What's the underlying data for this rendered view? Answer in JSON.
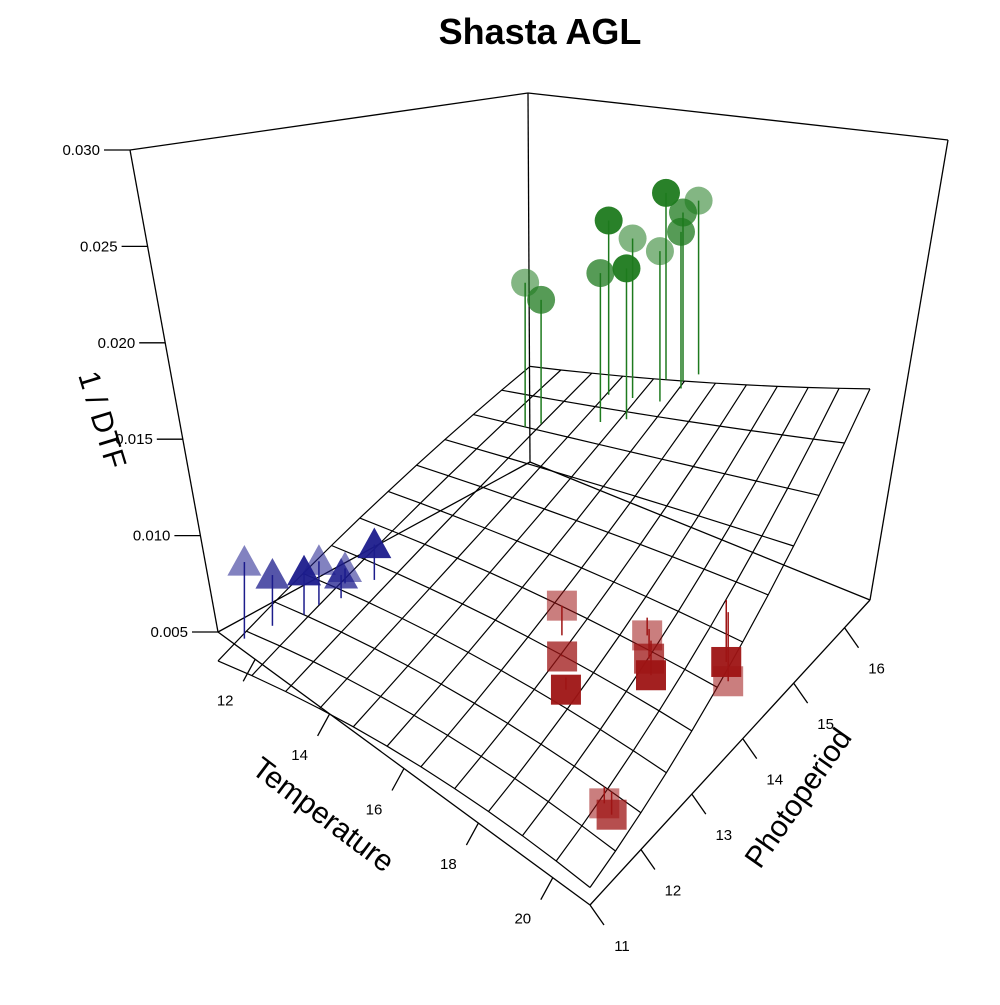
{
  "chart_data": {
    "type": "scatter",
    "subtype": "3d-scatter-with-regression-plane",
    "title": "Shasta AGL",
    "xlabel": "Temperature",
    "ylabel": "Photoperiod",
    "zlabel": "1 / DTF",
    "x_ticks": [
      "12",
      "14",
      "16",
      "18",
      "20"
    ],
    "y_ticks": [
      "11",
      "12",
      "13",
      "14",
      "15",
      "16"
    ],
    "z_ticks": [
      "0.005",
      "0.010",
      "0.015",
      "0.020",
      "0.025",
      "0.030"
    ],
    "xlim": [
      11,
      21
    ],
    "ylim": [
      11,
      16.5
    ],
    "zlim": [
      0.005,
      0.03
    ],
    "grid": true,
    "plane": {
      "intercept_at_x11_y11": 0.0035,
      "slope_x": 0.0005,
      "slope_y": 0.00145
    },
    "series": [
      {
        "marker": "triangle",
        "color": "#1c1c8c",
        "points": [
          {
            "x": 11.1,
            "y": 11.4,
            "z": 0.0082
          },
          {
            "x": 11.4,
            "y": 11.7,
            "z": 0.0075
          },
          {
            "x": 11.8,
            "y": 12.0,
            "z": 0.0078
          },
          {
            "x": 11.9,
            "y": 12.2,
            "z": 0.0082
          },
          {
            "x": 12.2,
            "y": 12.4,
            "z": 0.0075
          },
          {
            "x": 12.5,
            "y": 12.8,
            "z": 0.009
          },
          {
            "x": 12.0,
            "y": 12.6,
            "z": 0.0072
          }
        ]
      },
      {
        "marker": "square",
        "color": "#9e1414",
        "points": [
          {
            "x": 17.1,
            "y": 13.2,
            "z": 0.012
          },
          {
            "x": 17.4,
            "y": 13.0,
            "z": 0.0095
          },
          {
            "x": 17.8,
            "y": 12.8,
            "z": 0.0085
          },
          {
            "x": 18.6,
            "y": 13.8,
            "z": 0.01
          },
          {
            "x": 18.8,
            "y": 13.7,
            "z": 0.009
          },
          {
            "x": 19.0,
            "y": 13.6,
            "z": 0.0085
          },
          {
            "x": 20.0,
            "y": 12.0,
            "z": 0.0075
          },
          {
            "x": 20.2,
            "y": 12.0,
            "z": 0.0068
          },
          {
            "x": 20.1,
            "y": 14.3,
            "z": 0.0082
          },
          {
            "x": 20.3,
            "y": 14.2,
            "z": 0.0075
          }
        ]
      },
      {
        "marker": "circle",
        "color": "#1e7a1e",
        "points": [
          {
            "x": 12.5,
            "y": 15.5,
            "z": 0.02
          },
          {
            "x": 12.8,
            "y": 15.6,
            "z": 0.019
          },
          {
            "x": 13.8,
            "y": 16.2,
            "z": 0.0235
          },
          {
            "x": 14.5,
            "y": 16.2,
            "z": 0.0228
          },
          {
            "x": 14.2,
            "y": 15.8,
            "z": 0.0215
          },
          {
            "x": 14.8,
            "y": 15.9,
            "z": 0.022
          },
          {
            "x": 15.3,
            "y": 16.2,
            "z": 0.0225
          },
          {
            "x": 15.5,
            "y": 16.5,
            "z": 0.024
          },
          {
            "x": 15.0,
            "y": 16.5,
            "z": 0.025
          },
          {
            "x": 15.8,
            "y": 16.6,
            "z": 0.0245
          },
          {
            "x": 15.6,
            "y": 16.4,
            "z": 0.0232
          }
        ]
      }
    ]
  }
}
